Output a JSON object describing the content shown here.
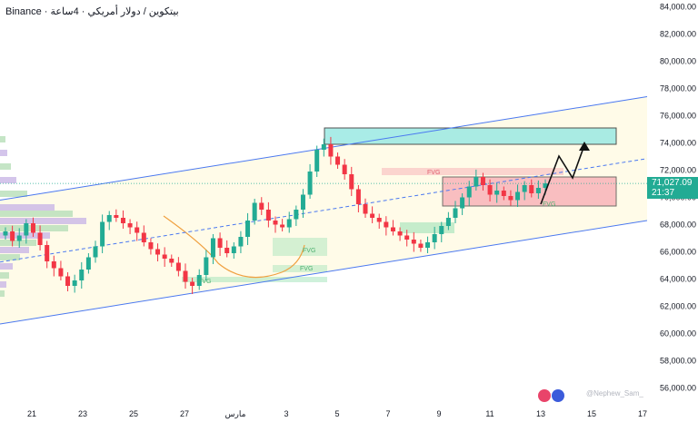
{
  "header": {
    "title": "Binance · بيتكوين / دولار أمريكي · 4ساعة"
  },
  "price_tag": {
    "price": "71,027.09",
    "countdown": "21:37"
  },
  "watermark": "@Nephew_Sam_",
  "colors": {
    "up": "#22ab94",
    "down": "#f23645",
    "channel": "#4a78f0",
    "fvg_red": "#f7a5b0",
    "fvg_green": "#9fe3b7",
    "supply_box": "#9be9e3"
  },
  "chart_data": {
    "type": "candlestick",
    "y_axis": {
      "min": 54500,
      "max": 84500,
      "ticks": [
        "84,000.00",
        "82,000.00",
        "80,000.00",
        "78,000.00",
        "76,000.00",
        "74,000.00",
        "72,000.00",
        "70,000.00",
        "68,000.00",
        "66,000.00",
        "64,000.00",
        "62,000.00",
        "60,000.00",
        "58,000.00",
        "56,000.00"
      ]
    },
    "x_axis": {
      "ticks": [
        "21",
        "23",
        "25",
        "27",
        "مارس",
        "3",
        "5",
        "7",
        "9",
        "11",
        "13",
        "15",
        "17"
      ]
    },
    "fvg_labels": [
      "FVG",
      "FVG",
      "FVG",
      "FVG",
      "FVG"
    ],
    "channel": {
      "lower": [
        [
          0,
          60700
        ],
        [
          38,
          68300
        ]
      ],
      "upper": [
        [
          0,
          69800
        ],
        [
          38,
          77400
        ]
      ]
    },
    "candles_close_path": [
      67500,
      66800,
      67200,
      68100,
      67400,
      66500,
      65300,
      64800,
      64200,
      63500,
      63900,
      64700,
      65600,
      66400,
      68200,
      68700,
      68500,
      68100,
      67800,
      67400,
      66700,
      66200,
      65800,
      65500,
      65200,
      64600,
      63800,
      63500,
      64300,
      65600,
      67000,
      66300,
      65900,
      66400,
      67100,
      68300,
      69600,
      69100,
      68300,
      68000,
      67800,
      68400,
      69100,
      70200,
      71900,
      73500,
      73900,
      73000,
      72400,
      71700,
      70600,
      69500,
      68800,
      68500,
      68200,
      67800,
      67500,
      67200,
      66900,
      66600,
      66300,
      66700,
      67300,
      67900,
      68500,
      69200,
      70000,
      70800,
      71500,
      70900,
      70200,
      70500,
      70100,
      69800,
      70400,
      70900,
      70300,
      70700,
      71027
    ],
    "price_labels": [
      "71,027.09"
    ]
  }
}
